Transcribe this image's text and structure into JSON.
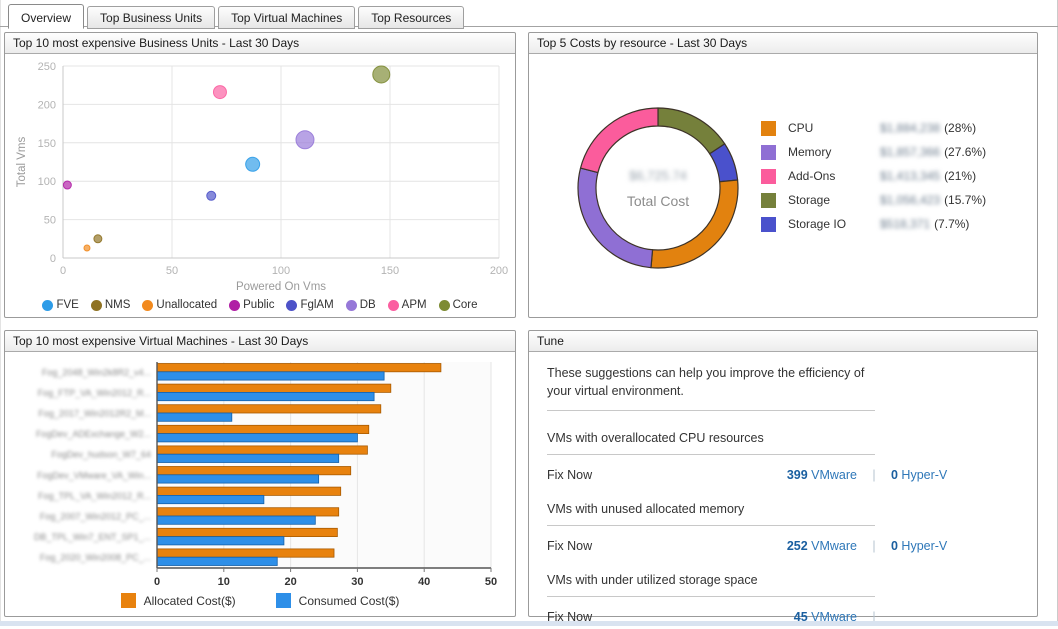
{
  "tabs": [
    {
      "label": "Overview",
      "active": true
    },
    {
      "label": "Top Business Units",
      "active": false
    },
    {
      "label": "Top Virtual Machines",
      "active": false
    },
    {
      "label": "Top Resources",
      "active": false
    }
  ],
  "panels": {
    "business_units_title": "Top 10 most expensive Business Units - Last 30 Days",
    "costs_title": "Top 5 Costs by resource - Last 30 Days",
    "vm_title": "Top 10 most expensive Virtual Machines - Last 30 Days",
    "tune_title": "Tune"
  },
  "chart_data": [
    {
      "id": "business-units-bubble",
      "type": "scatter",
      "title": "Top 10 most expensive Business Units - Last 30 Days",
      "xlabel": "Powered On Vms",
      "ylabel": "Total Vms",
      "xlim": [
        0,
        200
      ],
      "ylim": [
        0,
        250
      ],
      "xticks": [
        0,
        50,
        100,
        150,
        200
      ],
      "yticks": [
        0,
        50,
        100,
        150,
        200,
        250
      ],
      "grid": true,
      "legend_position": "bottom",
      "series": [
        {
          "name": "FVE",
          "color": "#2D9CE8",
          "x": 87,
          "y": 122,
          "r": 7
        },
        {
          "name": "NMS",
          "color": "#8F7222",
          "x": 16,
          "y": 25,
          "r": 4
        },
        {
          "name": "Unallocated",
          "color": "#F28A1E",
          "x": 11,
          "y": 13,
          "r": 3
        },
        {
          "name": "Public",
          "color": "#B01FA5",
          "x": 2,
          "y": 95,
          "r": 4
        },
        {
          "name": "FglAM",
          "color": "#4D52C8",
          "x": 68,
          "y": 81,
          "r": 4.5
        },
        {
          "name": "DB",
          "color": "#9678D8",
          "x": 111,
          "y": 154,
          "r": 9
        },
        {
          "name": "APM",
          "color": "#FB5FA0",
          "x": 72,
          "y": 216,
          "r": 6.5
        },
        {
          "name": "Core",
          "color": "#7D8B33",
          "x": 146,
          "y": 239,
          "r": 8.5
        }
      ]
    },
    {
      "id": "costs-donut",
      "type": "donut",
      "title": "Top 5 Costs by resource - Last 30 Days",
      "center_value": "$6,725.74",
      "center_label": "Total Cost",
      "values_redacted_blurred": true,
      "slices": [
        {
          "name": "CPU",
          "color": "#E2820F",
          "value": "$1,884,238",
          "percent": 28,
          "percent_label": "(28%)"
        },
        {
          "name": "Memory",
          "color": "#8F6FD4",
          "value": "$1,857,366",
          "percent": 27.6,
          "percent_label": "(27.6%)"
        },
        {
          "name": "Add-Ons",
          "color": "#FB5C9C",
          "value": "$1,413,345",
          "percent": 21,
          "percent_label": "(21%)"
        },
        {
          "name": "Storage",
          "color": "#75803B",
          "value": "$1,056,423",
          "percent": 15.7,
          "percent_label": "(15.7%)"
        },
        {
          "name": "Storage IO",
          "color": "#4A51CC",
          "value": "$518,371",
          "percent": 7.7,
          "percent_label": "(7.7%)"
        }
      ],
      "draw_order_from_top_clockwise": [
        "Storage",
        "Storage IO",
        "CPU",
        "Memory",
        "Add-Ons"
      ]
    },
    {
      "id": "vm-bars",
      "type": "bar",
      "orientation": "horizontal",
      "title": "Top 10 most expensive Virtual Machines - Last 30 Days",
      "xlim": [
        0,
        50
      ],
      "xticks": [
        0,
        10,
        20,
        30,
        40,
        50
      ],
      "categories_redacted_blurred": true,
      "categories": [
        "Fog_2048_Win2k8R2_v4...",
        "Fog_FTP_VA_Win2012_R...",
        "Fog_2017_Win2012R2_M...",
        "FogDev_ADExchange_W2...",
        "FogDev_hudson_W7_64",
        "FogDev_VMware_VA_Win...",
        "Fog_TPL_VA_Win2012_R...",
        "Fog_2007_Win2012_PC_...",
        "DB_TPL_Win7_ENT_SP1_...",
        "Fog_2020_Win2008_PC_..."
      ],
      "series": [
        {
          "name": "Allocated Cost($)",
          "color": "#E8820E",
          "border": "#A85A00",
          "values": [
            42.5,
            35.0,
            33.5,
            31.7,
            31.5,
            29.0,
            27.5,
            27.2,
            27.0,
            26.5
          ]
        },
        {
          "name": "Consumed Cost($)",
          "color": "#2E8FE8",
          "border": "#1460A8",
          "values": [
            34.0,
            32.5,
            11.2,
            30.0,
            27.2,
            24.2,
            16.0,
            23.7,
            19.0,
            18.0
          ]
        }
      ]
    }
  ],
  "tune": {
    "intro": "These suggestions can help you improve the efficiency of your virtual environment.",
    "sections": [
      {
        "title": "VMs with overallocated CPU resources",
        "action": "Fix Now",
        "vmware_count": "399",
        "vmware_label": "VMware",
        "hyperv_count": "0",
        "hyperv_label": "Hyper-V"
      },
      {
        "title": "VMs with unused allocated memory",
        "action": "Fix Now",
        "vmware_count": "252",
        "vmware_label": "VMware",
        "hyperv_count": "0",
        "hyperv_label": "Hyper-V"
      },
      {
        "title": "VMs with under utilized storage space",
        "action": "Fix Now",
        "vmware_count": "45",
        "vmware_label": "VMware",
        "hyperv_count": "",
        "hyperv_label": ""
      }
    ]
  }
}
